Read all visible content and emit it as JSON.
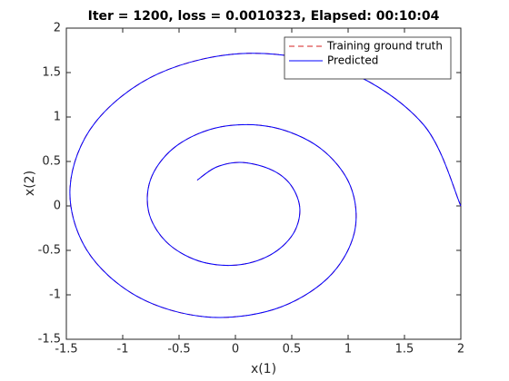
{
  "chart_data": {
    "type": "line",
    "title": "Iter = 1200, loss = 0.0010323, Elapsed: 00:10:04",
    "xlabel": "x(1)",
    "ylabel": "x(2)",
    "xlim": [
      -1.5,
      2
    ],
    "ylim": [
      -1.5,
      2
    ],
    "xticks": [
      -1.5,
      -1,
      -0.5,
      0,
      0.5,
      1,
      1.5,
      2
    ],
    "yticks": [
      -1.5,
      -1,
      -0.5,
      0,
      0.5,
      1,
      1.5,
      2
    ],
    "grid": false,
    "legend": "northeast",
    "series": [
      {
        "name": "Training ground truth",
        "color": "#d62020",
        "linestyle": "dashed",
        "x": [
          2,
          1.67,
          0.978,
          0.122,
          -0.681,
          -1.248,
          -1.467,
          -1.32,
          -0.876,
          -0.269,
          0.344,
          0.818,
          1.054,
          1.02,
          0.749,
          0.327,
          -0.131,
          -0.515,
          -0.741,
          -0.771,
          -0.617,
          -0.333,
          0.003,
          0.306,
          0.508,
          0.572,
          0.495,
          0.328,
          0.067,
          -0.163,
          -0.339
        ],
        "values": [
          0,
          0.912,
          1.523,
          1.717,
          1.489,
          0.932,
          0.209,
          -0.494,
          -1.015,
          -1.247,
          -1.163,
          -0.814,
          -0.307,
          0.225,
          0.653,
          0.886,
          0.889,
          0.683,
          0.335,
          -0.058,
          -0.4,
          -0.616,
          -0.666,
          -0.554,
          -0.323,
          -0.038,
          0.229,
          0.401,
          0.489,
          0.44,
          0.29
        ]
      },
      {
        "name": "Predicted",
        "color": "#0000ff",
        "linestyle": "solid",
        "x": [
          2,
          1.67,
          0.978,
          0.122,
          -0.681,
          -1.248,
          -1.467,
          -1.32,
          -0.876,
          -0.269,
          0.344,
          0.818,
          1.054,
          1.02,
          0.749,
          0.327,
          -0.131,
          -0.515,
          -0.741,
          -0.771,
          -0.617,
          -0.333,
          0.003,
          0.306,
          0.508,
          0.572,
          0.495,
          0.328,
          0.067,
          -0.163,
          -0.339
        ],
        "values": [
          0,
          0.912,
          1.523,
          1.717,
          1.489,
          0.932,
          0.209,
          -0.494,
          -1.015,
          -1.247,
          -1.163,
          -0.814,
          -0.307,
          0.225,
          0.653,
          0.886,
          0.889,
          0.683,
          0.335,
          -0.058,
          -0.4,
          -0.616,
          -0.666,
          -0.554,
          -0.323,
          -0.038,
          0.229,
          0.401,
          0.489,
          0.44,
          0.29
        ]
      }
    ]
  }
}
